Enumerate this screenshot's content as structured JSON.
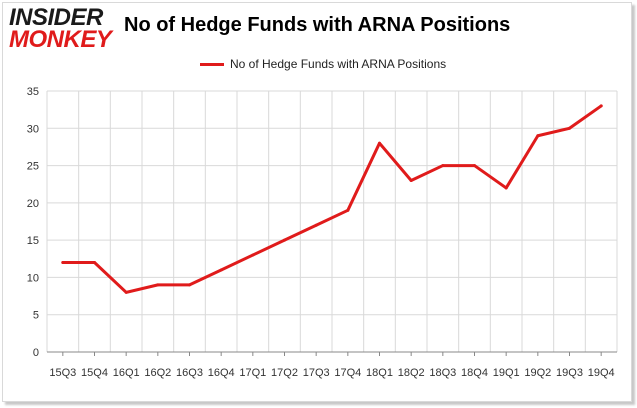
{
  "logo": {
    "line1": "INSIDER",
    "line2": "MONKEY"
  },
  "colors": {
    "series": "#e01b1b",
    "grid": "#d9d9d9",
    "axis": "#888888"
  },
  "chart_data": {
    "type": "line",
    "title": "No of Hedge Funds with ARNA Positions",
    "categories": [
      "15Q3",
      "15Q4",
      "16Q1",
      "16Q2",
      "16Q3",
      "16Q4",
      "17Q1",
      "17Q2",
      "17Q3",
      "17Q4",
      "18Q1",
      "18Q2",
      "18Q3",
      "18Q4",
      "19Q1",
      "19Q2",
      "19Q3",
      "19Q4"
    ],
    "series": [
      {
        "name": "No of Hedge Funds with ARNA Positions",
        "values": [
          12,
          12,
          8,
          9,
          9,
          11,
          13,
          15,
          17,
          19,
          28,
          23,
          25,
          25,
          22,
          29,
          30,
          33
        ]
      }
    ],
    "ylim": [
      0,
      35
    ],
    "yticks": [
      0,
      5,
      10,
      15,
      20,
      25,
      30,
      35
    ],
    "grid": true,
    "legend_position": "top-center"
  }
}
